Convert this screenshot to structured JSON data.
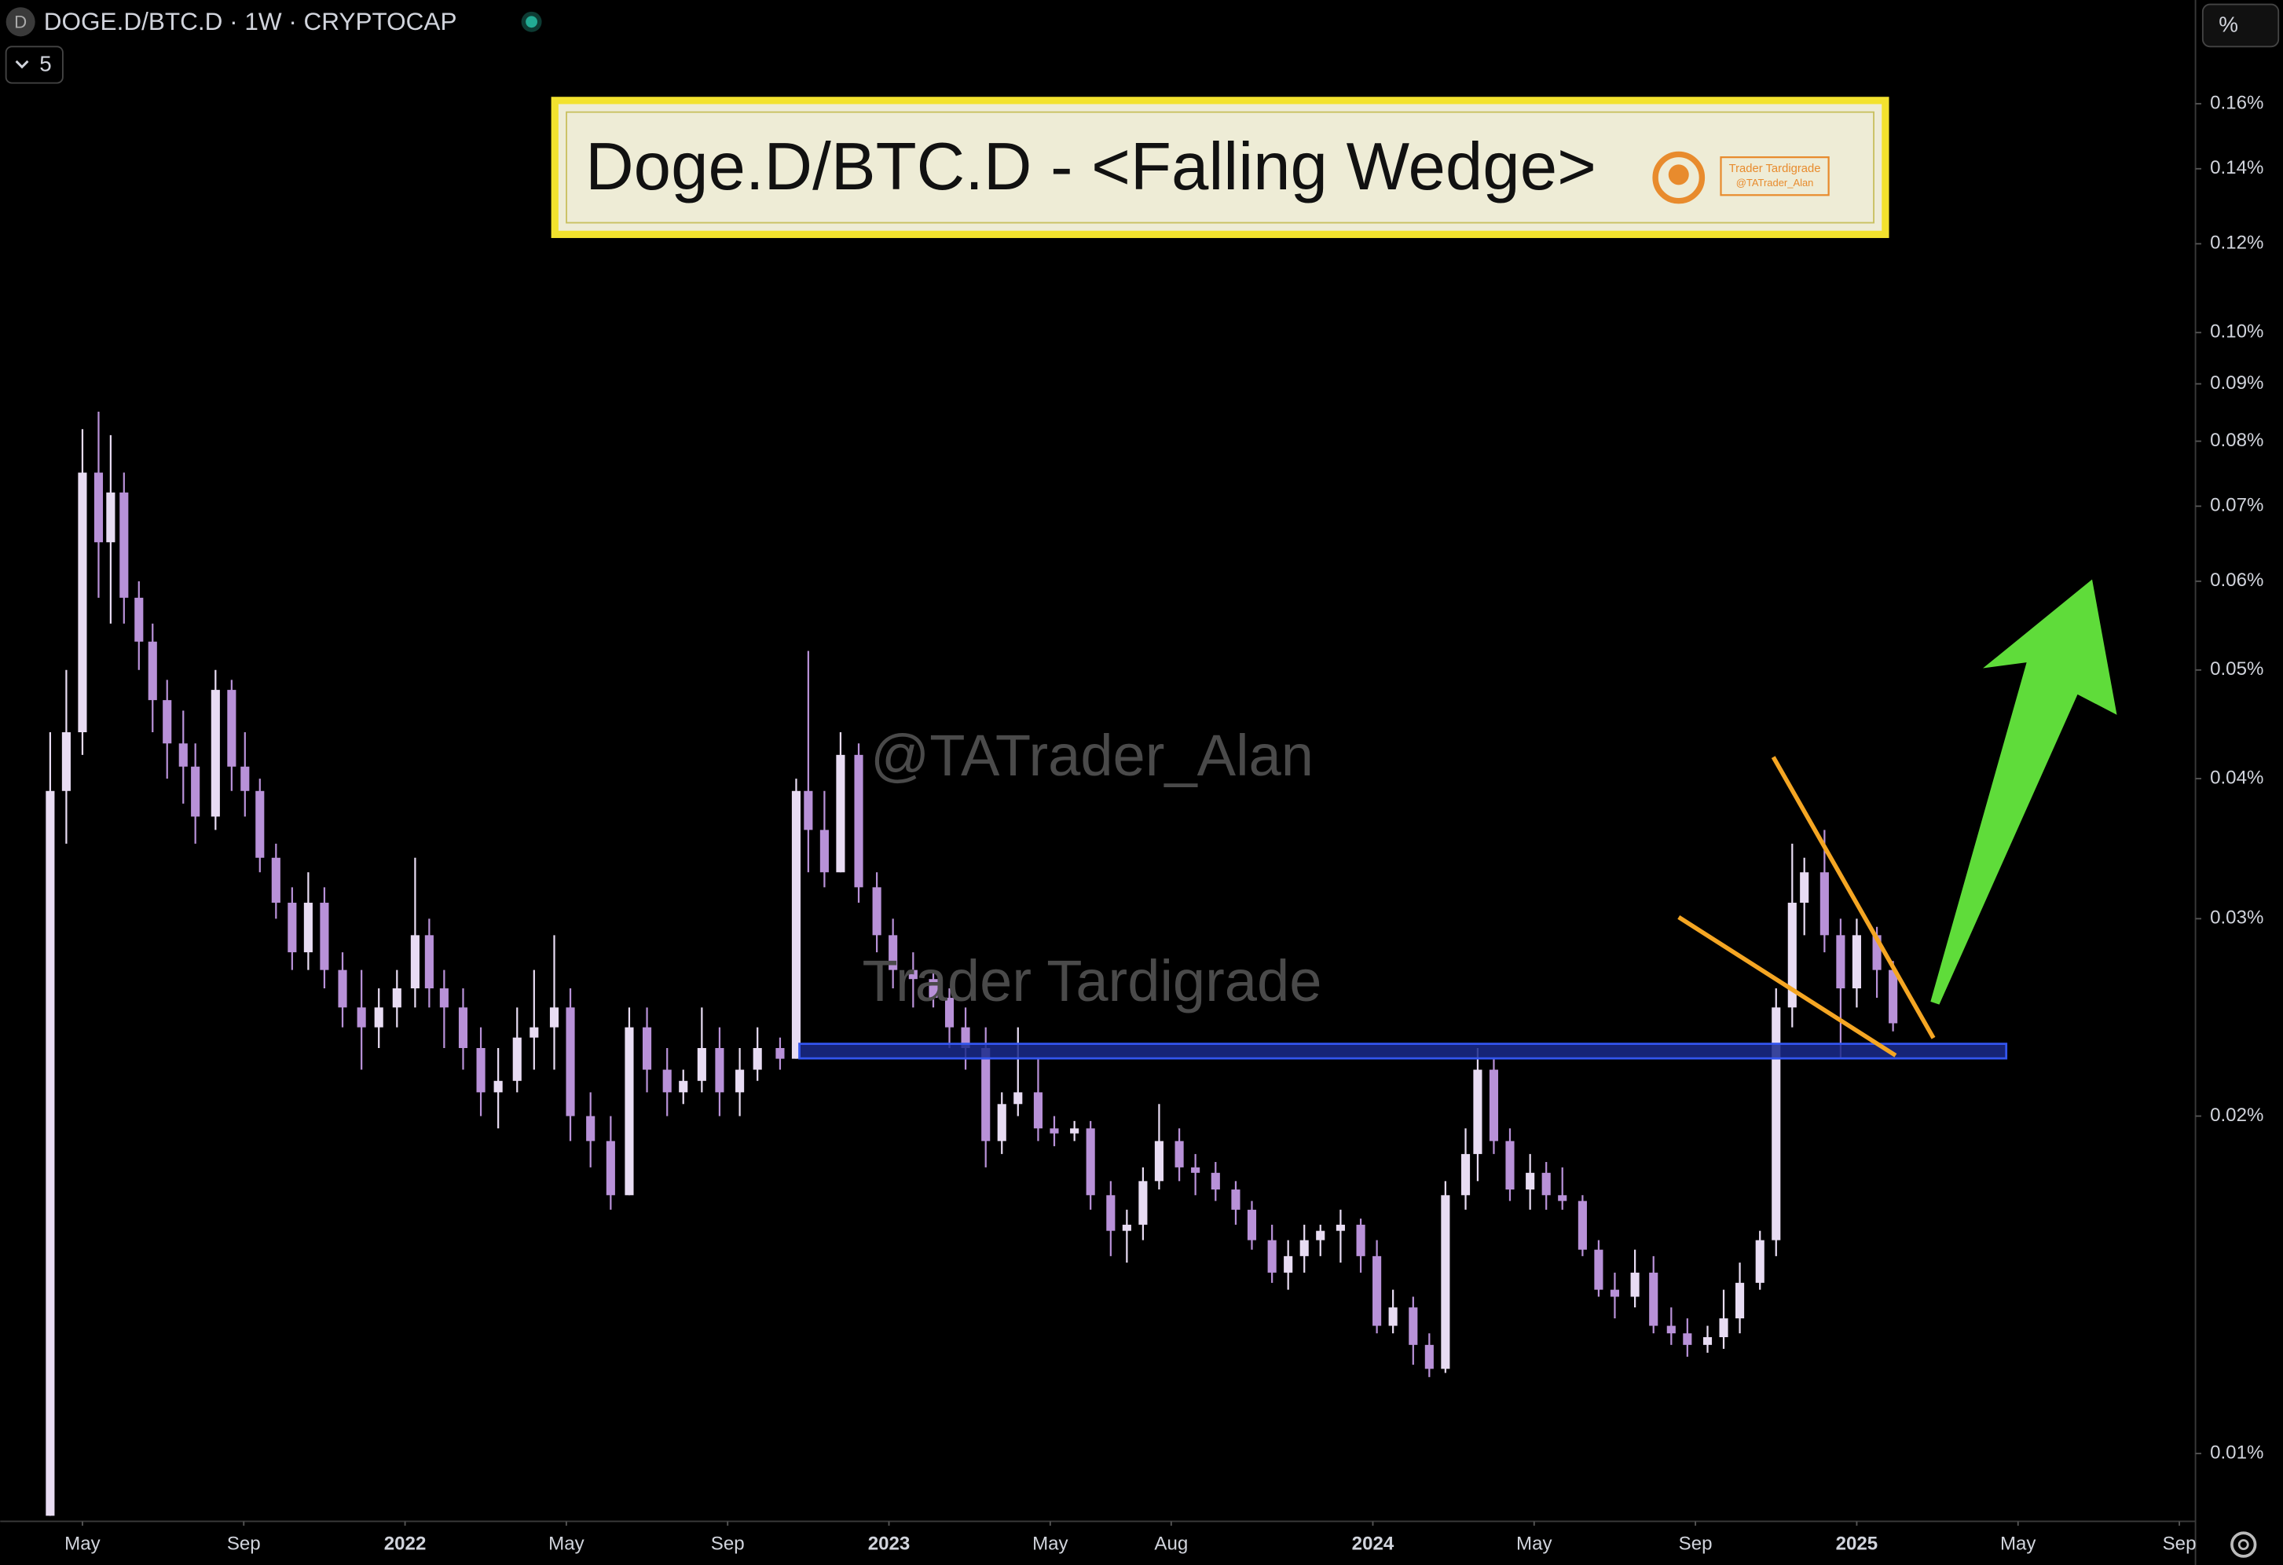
{
  "header": {
    "icon": "D",
    "symbol": "DOGE.D/BTC.D · 1W · CRYPTOCAP",
    "indicators": 5,
    "scale_button": "%"
  },
  "chart_data": {
    "type": "candlestick",
    "title": "Doge.D/BTC.D - <Falling Wedge>",
    "logo": {
      "line1": "Trader Tardigrade",
      "line2": "@TATrader_Alan"
    },
    "watermarks": [
      "@TATrader_Alan",
      "Trader Tardigrade"
    ],
    "log_scale": true,
    "grid": false,
    "up_color": "#e8dcf3",
    "down_color": "#b891d8",
    "xlim": [
      -10.04,
      44.4
    ],
    "ylim": [
      0.0087,
      0.198
    ],
    "xticks": [
      {
        "value": -8,
        "label": "May"
      },
      {
        "value": -4,
        "label": "Sep"
      },
      {
        "value": 0,
        "label": "2022"
      },
      {
        "value": 4,
        "label": "May"
      },
      {
        "value": 8,
        "label": "Sep"
      },
      {
        "value": 12,
        "label": "2023"
      },
      {
        "value": 16,
        "label": "May"
      },
      {
        "value": 19,
        "label": "Aug"
      },
      {
        "value": 24,
        "label": "2024"
      },
      {
        "value": 28,
        "label": "May"
      },
      {
        "value": 32,
        "label": "Sep"
      },
      {
        "value": 36,
        "label": "2025"
      },
      {
        "value": 40,
        "label": "May"
      },
      {
        "value": 44,
        "label": "Sep"
      }
    ],
    "yticks": [
      {
        "value": 0.16,
        "label": "0.16%"
      },
      {
        "value": 0.14,
        "label": "0.14%"
      },
      {
        "value": 0.12,
        "label": "0.12%"
      },
      {
        "value": 0.1,
        "label": "0.10%"
      },
      {
        "value": 0.09,
        "label": "0.09%"
      },
      {
        "value": 0.08,
        "label": "0.08%"
      },
      {
        "value": 0.07,
        "label": "0.07%"
      },
      {
        "value": 0.06,
        "label": "0.06%"
      },
      {
        "value": 0.05,
        "label": "0.05%"
      },
      {
        "value": 0.04,
        "label": "0.04%"
      },
      {
        "value": 0.03,
        "label": "0.03%"
      },
      {
        "value": 0.02,
        "label": "0.02%"
      },
      {
        "value": 0.01,
        "label": "0.01%"
      }
    ],
    "x": [
      -8.8,
      -8.4,
      -8.0,
      -7.6,
      -7.3,
      -6.97,
      -6.6,
      -6.26,
      -5.9,
      -5.5,
      -5.2,
      -4.7,
      -4.3,
      -3.97,
      -3.6,
      -3.2,
      -2.8,
      -2.4,
      -2.0,
      -1.55,
      -1.08,
      -0.65,
      -0.2,
      0.25,
      0.6,
      0.97,
      1.44,
      1.88,
      2.31,
      2.78,
      3.2,
      3.7,
      4.1,
      4.6,
      5.1,
      5.56,
      6.0,
      6.5,
      6.9,
      7.36,
      7.8,
      8.3,
      8.74,
      9.3,
      9.7,
      10.0,
      10.4,
      10.8,
      11.25,
      11.7,
      12.1,
      12.6,
      13.1,
      13.5,
      13.9,
      14.4,
      14.8,
      15.2,
      15.7,
      16.1,
      16.6,
      17.0,
      17.5,
      17.9,
      18.3,
      18.7,
      19.2,
      19.6,
      20.1,
      20.6,
      21.0,
      21.5,
      21.9,
      22.3,
      22.7,
      23.2,
      23.7,
      24.1,
      24.5,
      25.0,
      25.4,
      25.8,
      26.3,
      26.6,
      27.0,
      27.4,
      27.9,
      28.3,
      28.7,
      29.2,
      29.6,
      30.0,
      30.5,
      30.96,
      31.4,
      31.8,
      32.3,
      32.7,
      33.1,
      33.6,
      34.0,
      34.4,
      34.7,
      35.2,
      35.6,
      36.0,
      36.5,
      36.9
    ],
    "open": [
      0.0088,
      0.039,
      0.044,
      0.075,
      0.065,
      0.072,
      0.058,
      0.053,
      0.047,
      0.043,
      0.041,
      0.037,
      0.048,
      0.041,
      0.039,
      0.034,
      0.031,
      0.028,
      0.031,
      0.027,
      0.025,
      0.024,
      0.025,
      0.026,
      0.029,
      0.026,
      0.025,
      0.023,
      0.021,
      0.0215,
      0.0235,
      0.024,
      0.025,
      0.02,
      0.019,
      0.017,
      0.024,
      0.022,
      0.021,
      0.0215,
      0.023,
      0.021,
      0.022,
      0.023,
      0.0225,
      0.039,
      0.036,
      0.033,
      0.042,
      0.032,
      0.029,
      0.027,
      0.0265,
      0.0255,
      0.024,
      0.023,
      0.019,
      0.0205,
      0.021,
      0.0195,
      0.0193,
      0.0195,
      0.017,
      0.0158,
      0.016,
      0.0175,
      0.019,
      0.018,
      0.0178,
      0.0172,
      0.0165,
      0.0155,
      0.0145,
      0.015,
      0.0155,
      0.0158,
      0.016,
      0.015,
      0.013,
      0.0135,
      0.0125,
      0.0119,
      0.017,
      0.0185,
      0.022,
      0.019,
      0.0172,
      0.0178,
      0.017,
      0.0168,
      0.0152,
      0.014,
      0.0138,
      0.0145,
      0.013,
      0.0128,
      0.0125,
      0.0127,
      0.0132,
      0.0142,
      0.0155,
      0.025,
      0.031,
      0.033,
      0.029,
      0.026,
      0.029,
      0.027
    ],
    "high": [
      0.044,
      0.05,
      0.082,
      0.085,
      0.081,
      0.075,
      0.06,
      0.055,
      0.049,
      0.046,
      0.043,
      0.05,
      0.049,
      0.044,
      0.04,
      0.035,
      0.032,
      0.033,
      0.032,
      0.028,
      0.027,
      0.026,
      0.027,
      0.034,
      0.03,
      0.027,
      0.026,
      0.024,
      0.023,
      0.025,
      0.027,
      0.029,
      0.026,
      0.021,
      0.02,
      0.025,
      0.025,
      0.023,
      0.022,
      0.025,
      0.024,
      0.023,
      0.024,
      0.0235,
      0.04,
      0.052,
      0.039,
      0.044,
      0.043,
      0.033,
      0.03,
      0.028,
      0.027,
      0.026,
      0.025,
      0.024,
      0.021,
      0.024,
      0.0225,
      0.02,
      0.0198,
      0.0198,
      0.0175,
      0.0165,
      0.018,
      0.0205,
      0.0195,
      0.0185,
      0.0182,
      0.0175,
      0.0168,
      0.016,
      0.0155,
      0.016,
      0.016,
      0.0165,
      0.0162,
      0.0155,
      0.014,
      0.0138,
      0.0128,
      0.0175,
      0.0195,
      0.023,
      0.0225,
      0.0195,
      0.0185,
      0.0182,
      0.018,
      0.017,
      0.0155,
      0.0145,
      0.0152,
      0.015,
      0.0135,
      0.0132,
      0.013,
      0.014,
      0.0148,
      0.0158,
      0.026,
      0.035,
      0.034,
      0.036,
      0.03,
      0.03,
      0.0295,
      0.0275
    ],
    "low": [
      0.0088,
      0.035,
      0.042,
      0.058,
      0.055,
      0.055,
      0.05,
      0.044,
      0.04,
      0.038,
      0.035,
      0.036,
      0.039,
      0.037,
      0.033,
      0.03,
      0.027,
      0.027,
      0.026,
      0.024,
      0.022,
      0.023,
      0.024,
      0.025,
      0.025,
      0.023,
      0.022,
      0.02,
      0.0195,
      0.021,
      0.022,
      0.022,
      0.019,
      0.018,
      0.0165,
      0.017,
      0.021,
      0.02,
      0.0205,
      0.021,
      0.02,
      0.02,
      0.0215,
      0.022,
      0.0225,
      0.033,
      0.032,
      0.033,
      0.031,
      0.028,
      0.026,
      0.025,
      0.025,
      0.023,
      0.022,
      0.018,
      0.0185,
      0.02,
      0.019,
      0.0188,
      0.019,
      0.0165,
      0.015,
      0.0148,
      0.0155,
      0.0172,
      0.0175,
      0.017,
      0.0168,
      0.016,
      0.0152,
      0.0142,
      0.014,
      0.0145,
      0.015,
      0.0148,
      0.0145,
      0.0128,
      0.0128,
      0.012,
      0.0117,
      0.0118,
      0.0165,
      0.0175,
      0.0185,
      0.0168,
      0.0165,
      0.0165,
      0.0165,
      0.015,
      0.0138,
      0.0132,
      0.0135,
      0.0128,
      0.0125,
      0.0122,
      0.0123,
      0.0124,
      0.0128,
      0.014,
      0.015,
      0.024,
      0.029,
      0.028,
      0.0225,
      0.025,
      0.0255,
      0.0238
    ],
    "close": [
      0.039,
      0.044,
      0.075,
      0.065,
      0.072,
      0.058,
      0.053,
      0.047,
      0.043,
      0.041,
      0.037,
      0.048,
      0.041,
      0.039,
      0.034,
      0.031,
      0.028,
      0.031,
      0.027,
      0.025,
      0.024,
      0.025,
      0.026,
      0.029,
      0.026,
      0.025,
      0.023,
      0.021,
      0.0215,
      0.0235,
      0.024,
      0.025,
      0.02,
      0.019,
      0.017,
      0.024,
      0.022,
      0.021,
      0.0215,
      0.023,
      0.021,
      0.022,
      0.023,
      0.0225,
      0.039,
      0.036,
      0.033,
      0.042,
      0.032,
      0.029,
      0.027,
      0.0265,
      0.0255,
      0.024,
      0.023,
      0.019,
      0.0205,
      0.021,
      0.0195,
      0.0193,
      0.0195,
      0.017,
      0.0158,
      0.016,
      0.0175,
      0.019,
      0.018,
      0.0178,
      0.0172,
      0.0165,
      0.0155,
      0.0145,
      0.015,
      0.0155,
      0.0158,
      0.016,
      0.015,
      0.013,
      0.0135,
      0.0125,
      0.0119,
      0.017,
      0.0185,
      0.022,
      0.019,
      0.0172,
      0.0178,
      0.017,
      0.0168,
      0.0152,
      0.014,
      0.0138,
      0.0145,
      0.013,
      0.0128,
      0.0125,
      0.0127,
      0.0132,
      0.0142,
      0.0155,
      0.025,
      0.031,
      0.033,
      0.029,
      0.026,
      0.029,
      0.027,
      0.0242
    ]
  }
}
